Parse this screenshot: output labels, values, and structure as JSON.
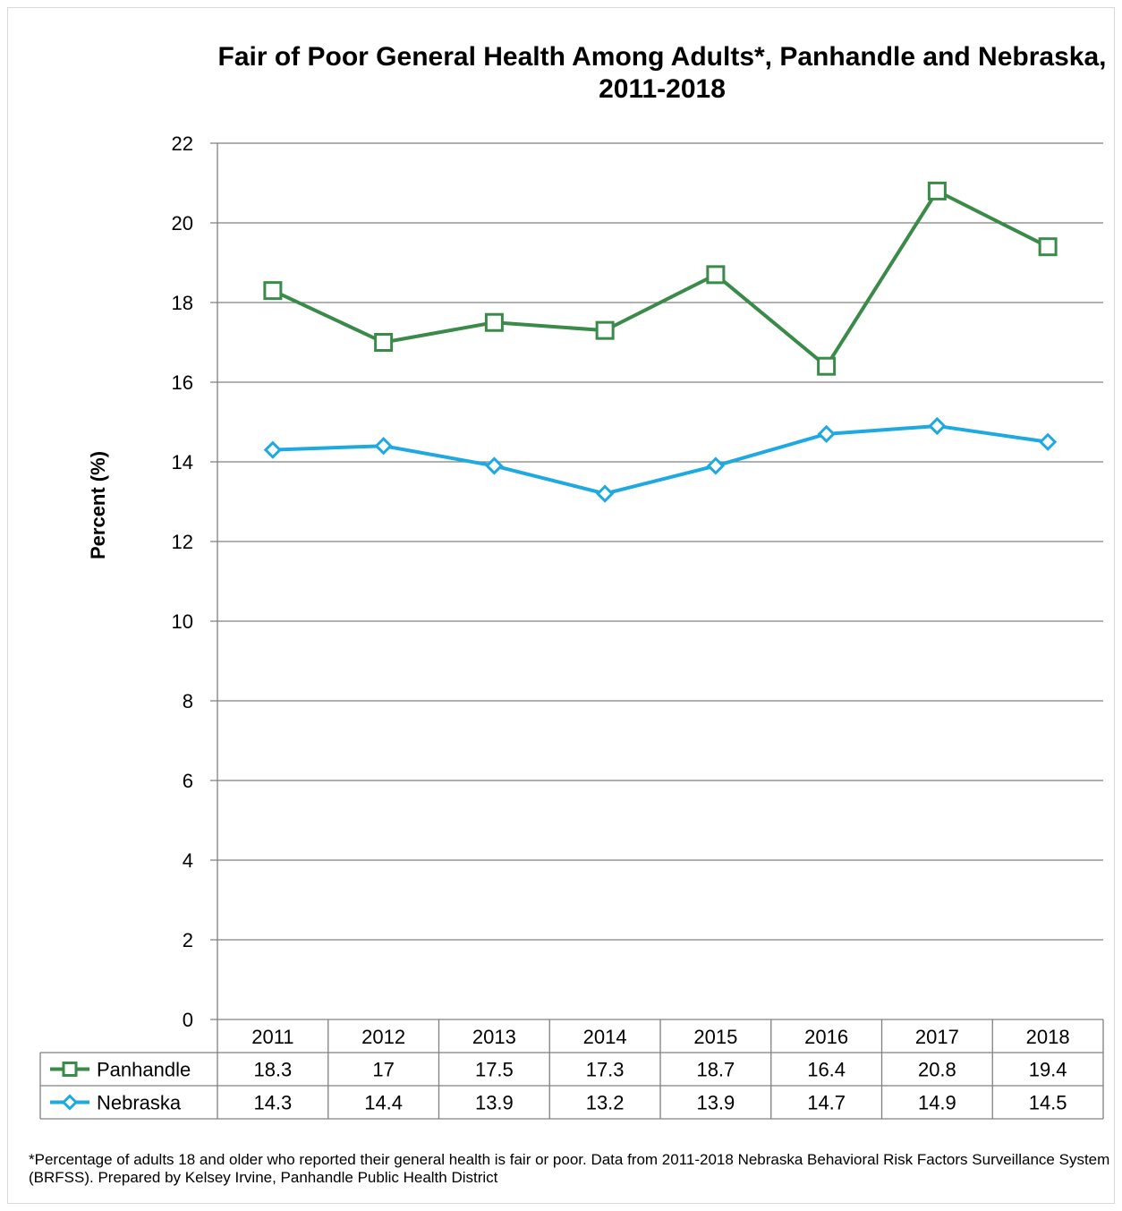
{
  "title": "Fair of Poor General Health Among Adults*, Panhandle and Nebraska, 2011-2018",
  "footnote": "*Percentage of adults 18 and older who reported their general health is fair or poor. Data from 2011-2018 Nebraska Behavioral Risk Factors Surveillance System (BRFSS). Prepared by Kelsey Irvine, Panhandle Public Health District",
  "chart_data": {
    "type": "line",
    "title": "Fair of Poor General Health Among Adults*, Panhandle and Nebraska, 2011-2018",
    "xlabel": "",
    "ylabel": "Percent (%)",
    "ylim": [
      0,
      22
    ],
    "yticks": [
      0,
      2,
      4,
      6,
      8,
      10,
      12,
      14,
      16,
      18,
      20,
      22
    ],
    "grid": true,
    "legend": "data table below chart",
    "categories": [
      "2011",
      "2012",
      "2013",
      "2014",
      "2015",
      "2016",
      "2017",
      "2018"
    ],
    "series": [
      {
        "name": "Panhandle",
        "color": "#3a8a4a",
        "marker": "square",
        "values": [
          18.3,
          17,
          17.5,
          17.3,
          18.7,
          16.4,
          20.8,
          19.4
        ]
      },
      {
        "name": "Nebraska",
        "color": "#1fa9e1",
        "marker": "diamond",
        "values": [
          14.3,
          14.4,
          13.9,
          13.2,
          13.9,
          14.7,
          14.9,
          14.5
        ]
      }
    ]
  }
}
